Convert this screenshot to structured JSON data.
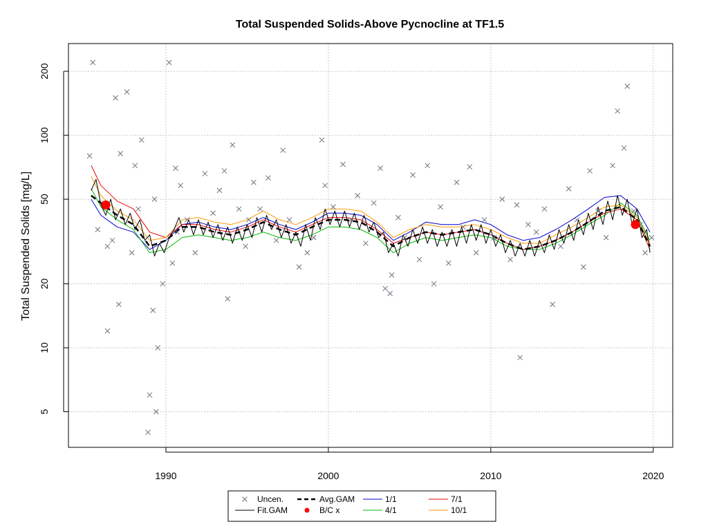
{
  "chart_data": {
    "type": "scatter",
    "title": "Total Suspended Solids-Above Pycnocline at TF1.5",
    "xlabel": "",
    "ylabel": "Total Suspended Solids [mg/L]",
    "y_scale": "log",
    "xlim": [
      1984.0,
      2021.2
    ],
    "ylim": [
      3.4,
      270
    ],
    "x_ticks": [
      1990,
      2000,
      2010,
      2020
    ],
    "y_ticks": [
      5,
      10,
      20,
      50,
      100,
      200
    ],
    "grid": true,
    "legend_position": "bottom-center",
    "legend": [
      {
        "label": "Uncen.",
        "symbol": "x",
        "color": "#6b7280"
      },
      {
        "label": "Avg.GAM",
        "symbol": "dashed",
        "color": "#000000"
      },
      {
        "label": "1/1",
        "symbol": "line",
        "color": "#0000cc"
      },
      {
        "label": "7/1",
        "symbol": "line",
        "color": "#ee0000"
      },
      {
        "label": "Fit.GAM",
        "symbol": "line",
        "color": "#000000"
      },
      {
        "label": "B/C x",
        "symbol": "dot",
        "color": "#ff0000"
      },
      {
        "label": "4/1",
        "symbol": "line",
        "color": "#00bb00"
      },
      {
        "label": "10/1",
        "symbol": "line",
        "color": "#ff9900"
      }
    ],
    "series": [
      {
        "name": "Avg.GAM",
        "color": "#000000",
        "x": [
          1985.4,
          1986.0,
          1987.0,
          1988.0,
          1989.0,
          1990.0,
          1991.0,
          1992.0,
          1993.0,
          1994.0,
          1995.0,
          1996.0,
          1997.0,
          1998.0,
          1999.0,
          2000.0,
          2001.0,
          2002.0,
          2003.0,
          2004.0,
          2005.0,
          2006.0,
          2007.0,
          2008.0,
          2009.0,
          2010.0,
          2011.0,
          2012.0,
          2013.0,
          2014.0,
          2015.0,
          2016.0,
          2017.0,
          2018.0,
          2019.0,
          2019.8
        ],
        "y": [
          52,
          48,
          42,
          38,
          30,
          32,
          37,
          37,
          35,
          34,
          36,
          39,
          36,
          34,
          37,
          40,
          40,
          39,
          35,
          30,
          33,
          35,
          34,
          35,
          36,
          34,
          31,
          29,
          30,
          32,
          35,
          39,
          44,
          46,
          40,
          30
        ]
      },
      {
        "name": "1/1",
        "color": "#0000cc",
        "x": [
          1985.4,
          1986.0,
          1987.0,
          1988.0,
          1989.0,
          1990.0,
          1991.0,
          1992.0,
          1993.0,
          1994.0,
          1995.0,
          1996.0,
          1997.0,
          1998.0,
          1999.0,
          2000.0,
          2001.0,
          2002.0,
          2003.0,
          2004.0,
          2005.0,
          2006.0,
          2007.0,
          2008.0,
          2009.0,
          2010.0,
          2011.0,
          2012.0,
          2013.0,
          2014.0,
          2015.0,
          2016.0,
          2017.0,
          2018.0,
          2019.0,
          2019.8
        ],
        "y": [
          50,
          42,
          37,
          35,
          29,
          32,
          38,
          39,
          37,
          36,
          38,
          41,
          38,
          36,
          39,
          43,
          43,
          42,
          38,
          32,
          35,
          39,
          38,
          38,
          40,
          38,
          34,
          32,
          33,
          36,
          40,
          45,
          51,
          52,
          45,
          35
        ]
      },
      {
        "name": "4/1",
        "color": "#00bb00",
        "x": [
          1985.4,
          1986.0,
          1987.0,
          1988.0,
          1989.0,
          1990.0,
          1991.0,
          1992.0,
          1993.0,
          1994.0,
          1995.0,
          1996.0,
          1997.0,
          1998.0,
          1999.0,
          2000.0,
          2001.0,
          2002.0,
          2003.0,
          2004.0,
          2005.0,
          2006.0,
          2007.0,
          2008.0,
          2009.0,
          2010.0,
          2011.0,
          2012.0,
          2013.0,
          2014.0,
          2015.0,
          2016.0,
          2017.0,
          2018.0,
          2019.0,
          2019.8
        ],
        "y": [
          56,
          46,
          40,
          36,
          28,
          29,
          33,
          34,
          33,
          32,
          33,
          35,
          33,
          32,
          34,
          37,
          37,
          36,
          33,
          28,
          31,
          33,
          32,
          33,
          34,
          33,
          30,
          29,
          29,
          31,
          34,
          38,
          42,
          48,
          42,
          32
        ]
      },
      {
        "name": "7/1",
        "color": "#ee0000",
        "x": [
          1985.4,
          1986.0,
          1987.0,
          1988.0,
          1989.0,
          1990.0,
          1991.0,
          1992.0,
          1993.0,
          1994.0,
          1995.0,
          1996.0,
          1997.0,
          1998.0,
          1999.0,
          2000.0,
          2001.0,
          2002.0,
          2003.0,
          2004.0,
          2005.0,
          2006.0,
          2007.0,
          2008.0,
          2009.0,
          2010.0,
          2011.0,
          2012.0,
          2013.0,
          2014.0,
          2015.0,
          2016.0,
          2017.0,
          2018.0,
          2019.0,
          2019.8
        ],
        "y": [
          72,
          58,
          49,
          45,
          35,
          33,
          38,
          38,
          36,
          35,
          37,
          40,
          37,
          35,
          38,
          41,
          41,
          40,
          36,
          31,
          33,
          35,
          34,
          35,
          36,
          34,
          31,
          29,
          30,
          32,
          35,
          39,
          43,
          45,
          40,
          29
        ]
      },
      {
        "name": "10/1",
        "color": "#ff9900",
        "x": [
          1985.4,
          1986.0,
          1987.0,
          1988.0,
          1989.0,
          1990.0,
          1991.0,
          1992.0,
          1993.0,
          1994.0,
          1995.0,
          1996.0,
          1997.0,
          1998.0,
          1999.0,
          2000.0,
          2001.0,
          2002.0,
          2003.0,
          2004.0,
          2005.0,
          2006.0,
          2007.0,
          2008.0,
          2009.0,
          2010.0,
          2011.0,
          2012.0,
          2013.0,
          2014.0,
          2015.0,
          2016.0,
          2017.0,
          2018.0,
          2019.0,
          2019.8
        ],
        "y": [
          64,
          52,
          44,
          40,
          32,
          33,
          40,
          41,
          39,
          38,
          40,
          44,
          40,
          38,
          41,
          45,
          45,
          44,
          39,
          33,
          36,
          38,
          37,
          37,
          38,
          36,
          33,
          31,
          31,
          34,
          37,
          41,
          46,
          47,
          41,
          31
        ]
      },
      {
        "name": "Fit.GAM",
        "color": "#000000",
        "x": [
          1985.4,
          1985.7,
          1986.0,
          1986.3,
          1986.6,
          1986.9,
          1987.2,
          1987.5,
          1987.8,
          1988.1,
          1988.4,
          1988.7,
          1989.0,
          1989.3,
          1989.6,
          1989.9,
          1990.2,
          1990.5,
          1990.8,
          1991.1,
          1991.4,
          1991.7,
          1992.0,
          1992.3,
          1992.6,
          1992.9,
          1993.2,
          1993.5,
          1993.8,
          1994.1,
          1994.4,
          1994.7,
          1995.0,
          1995.3,
          1995.6,
          1995.9,
          1996.2,
          1996.5,
          1996.8,
          1997.1,
          1997.4,
          1997.7,
          1998.0,
          1998.3,
          1998.6,
          1998.9,
          1999.2,
          1999.5,
          1999.8,
          2000.1,
          2000.4,
          2000.7,
          2001.0,
          2001.3,
          2001.6,
          2001.9,
          2002.2,
          2002.5,
          2002.8,
          2003.1,
          2003.4,
          2003.7,
          2004.0,
          2004.3,
          2004.6,
          2004.9,
          2005.2,
          2005.5,
          2005.8,
          2006.1,
          2006.4,
          2006.7,
          2007.0,
          2007.3,
          2007.6,
          2007.9,
          2008.2,
          2008.5,
          2008.8,
          2009.1,
          2009.4,
          2009.7,
          2010.0,
          2010.3,
          2010.6,
          2010.9,
          2011.2,
          2011.5,
          2011.8,
          2012.1,
          2012.4,
          2012.7,
          2013.0,
          2013.3,
          2013.6,
          2013.9,
          2014.2,
          2014.5,
          2014.8,
          2015.1,
          2015.4,
          2015.7,
          2016.0,
          2016.3,
          2016.6,
          2016.9,
          2017.2,
          2017.5,
          2017.8,
          2018.1,
          2018.4,
          2018.7,
          2019.0,
          2019.3,
          2019.6,
          2019.8
        ],
        "y": [
          55,
          62,
          47,
          42,
          50,
          40,
          45,
          38,
          43,
          36,
          40,
          32,
          34,
          27,
          31,
          28,
          33,
          36,
          41,
          35,
          40,
          34,
          40,
          34,
          39,
          33,
          38,
          32,
          37,
          31,
          37,
          32,
          38,
          33,
          41,
          35,
          42,
          36,
          40,
          33,
          38,
          31,
          35,
          30,
          38,
          32,
          41,
          36,
          45,
          38,
          44,
          37,
          44,
          37,
          43,
          36,
          42,
          35,
          39,
          33,
          35,
          28,
          31,
          27,
          34,
          30,
          36,
          31,
          37,
          31,
          36,
          30,
          35,
          30,
          36,
          30,
          37,
          31,
          38,
          32,
          38,
          31,
          36,
          30,
          34,
          28,
          32,
          27,
          31,
          27,
          32,
          27,
          32,
          28,
          34,
          29,
          36,
          31,
          38,
          32,
          40,
          34,
          43,
          36,
          46,
          38,
          49,
          40,
          52,
          42,
          50,
          38,
          45,
          33,
          36,
          28
        ]
      },
      {
        "name": "Uncen.",
        "color": "#6b7280",
        "x": [
          1985.5,
          1985.3,
          1986.2,
          1985.8,
          1986.9,
          1986.4,
          1987.2,
          1986.7,
          1987.6,
          1988.1,
          1987.9,
          1988.5,
          1988.3,
          1989.0,
          1989.2,
          1989.5,
          1988.9,
          1989.8,
          1990.4,
          1990.9,
          1991.3,
          1990.2,
          1991.8,
          1992.4,
          1992.9,
          1993.3,
          1993.8,
          1994.1,
          1994.5,
          1993.6,
          1994.9,
          1995.4,
          1995.8,
          1996.3,
          1996.8,
          1997.2,
          1997.6,
          1998.2,
          1998.7,
          1999.1,
          1999.6,
          1999.8,
          2000.3,
          2000.9,
          2001.4,
          2001.8,
          2002.3,
          2002.8,
          2003.2,
          2003.5,
          2003.8,
          2004.3,
          2004.7,
          2005.2,
          2005.6,
          2006.1,
          2006.5,
          2006.9,
          2007.4,
          2007.9,
          2008.3,
          2008.7,
          2009.1,
          2009.6,
          2010.2,
          2010.7,
          2011.2,
          2011.6,
          2011.8,
          2012.3,
          2012.8,
          2013.3,
          2013.8,
          2014.3,
          2014.8,
          2015.3,
          2015.7,
          2016.1,
          2016.6,
          2017.1,
          2017.5,
          2017.8,
          2018.2,
          2018.4,
          2018.8,
          2019.2,
          2019.5,
          2019.9,
          1990.6,
          1989.4,
          1989.3,
          1990.7,
          1986.4,
          1987.1,
          1995.1,
          2003.9
        ],
        "y": [
          220,
          80,
          48,
          36,
          150,
          12,
          82,
          32,
          160,
          72,
          28,
          95,
          45,
          6,
          15,
          10,
          4,
          20,
          25,
          58,
          40,
          220,
          28,
          66,
          43,
          55,
          17,
          90,
          45,
          68,
          30,
          60,
          45,
          63,
          32,
          85,
          40,
          24,
          28,
          33,
          95,
          58,
          46,
          73,
          40,
          52,
          31,
          48,
          70,
          19,
          18,
          41,
          33,
          65,
          26,
          72,
          20,
          46,
          25,
          60,
          37,
          71,
          28,
          40,
          33,
          50,
          26,
          47,
          9,
          38,
          35,
          45,
          16,
          30,
          56,
          40,
          24,
          68,
          44,
          33,
          72,
          130,
          87,
          170,
          44,
          38,
          28,
          33,
          70,
          5,
          50,
          35,
          30,
          16,
          40,
          22
        ]
      }
    ],
    "markers": {
      "name": "B/C x",
      "color": "#ff0000",
      "x": [
        1986.3,
        2018.9
      ],
      "y": [
        47,
        38
      ]
    }
  }
}
